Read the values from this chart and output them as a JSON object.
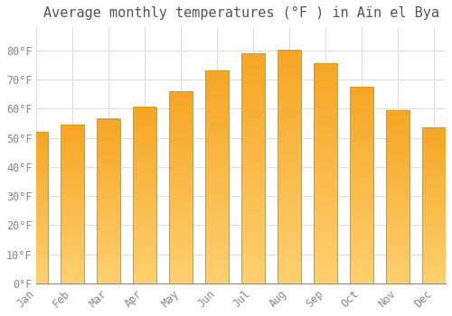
{
  "title": "Average monthly temperatures (°F ) in Aïn el Bya",
  "months": [
    "Jan",
    "Feb",
    "Mar",
    "Apr",
    "May",
    "Jun",
    "Jul",
    "Aug",
    "Sep",
    "Oct",
    "Nov",
    "Dec"
  ],
  "values": [
    52,
    54.5,
    56.5,
    60.5,
    66,
    73,
    79,
    80,
    75.5,
    67.5,
    59.5,
    53.5
  ],
  "bar_color_top": "#F5A623",
  "bar_color_bottom": "#FFD070",
  "bar_edge_color": "#E8960A",
  "background_color": "#FFFFFF",
  "grid_color": "#DDDDDD",
  "ylim": [
    0,
    88
  ],
  "yticks": [
    0,
    10,
    20,
    30,
    40,
    50,
    60,
    70,
    80
  ],
  "title_fontsize": 11,
  "tick_fontsize": 8.5,
  "tick_color": "#888888",
  "title_color": "#555555",
  "bar_width": 0.65
}
